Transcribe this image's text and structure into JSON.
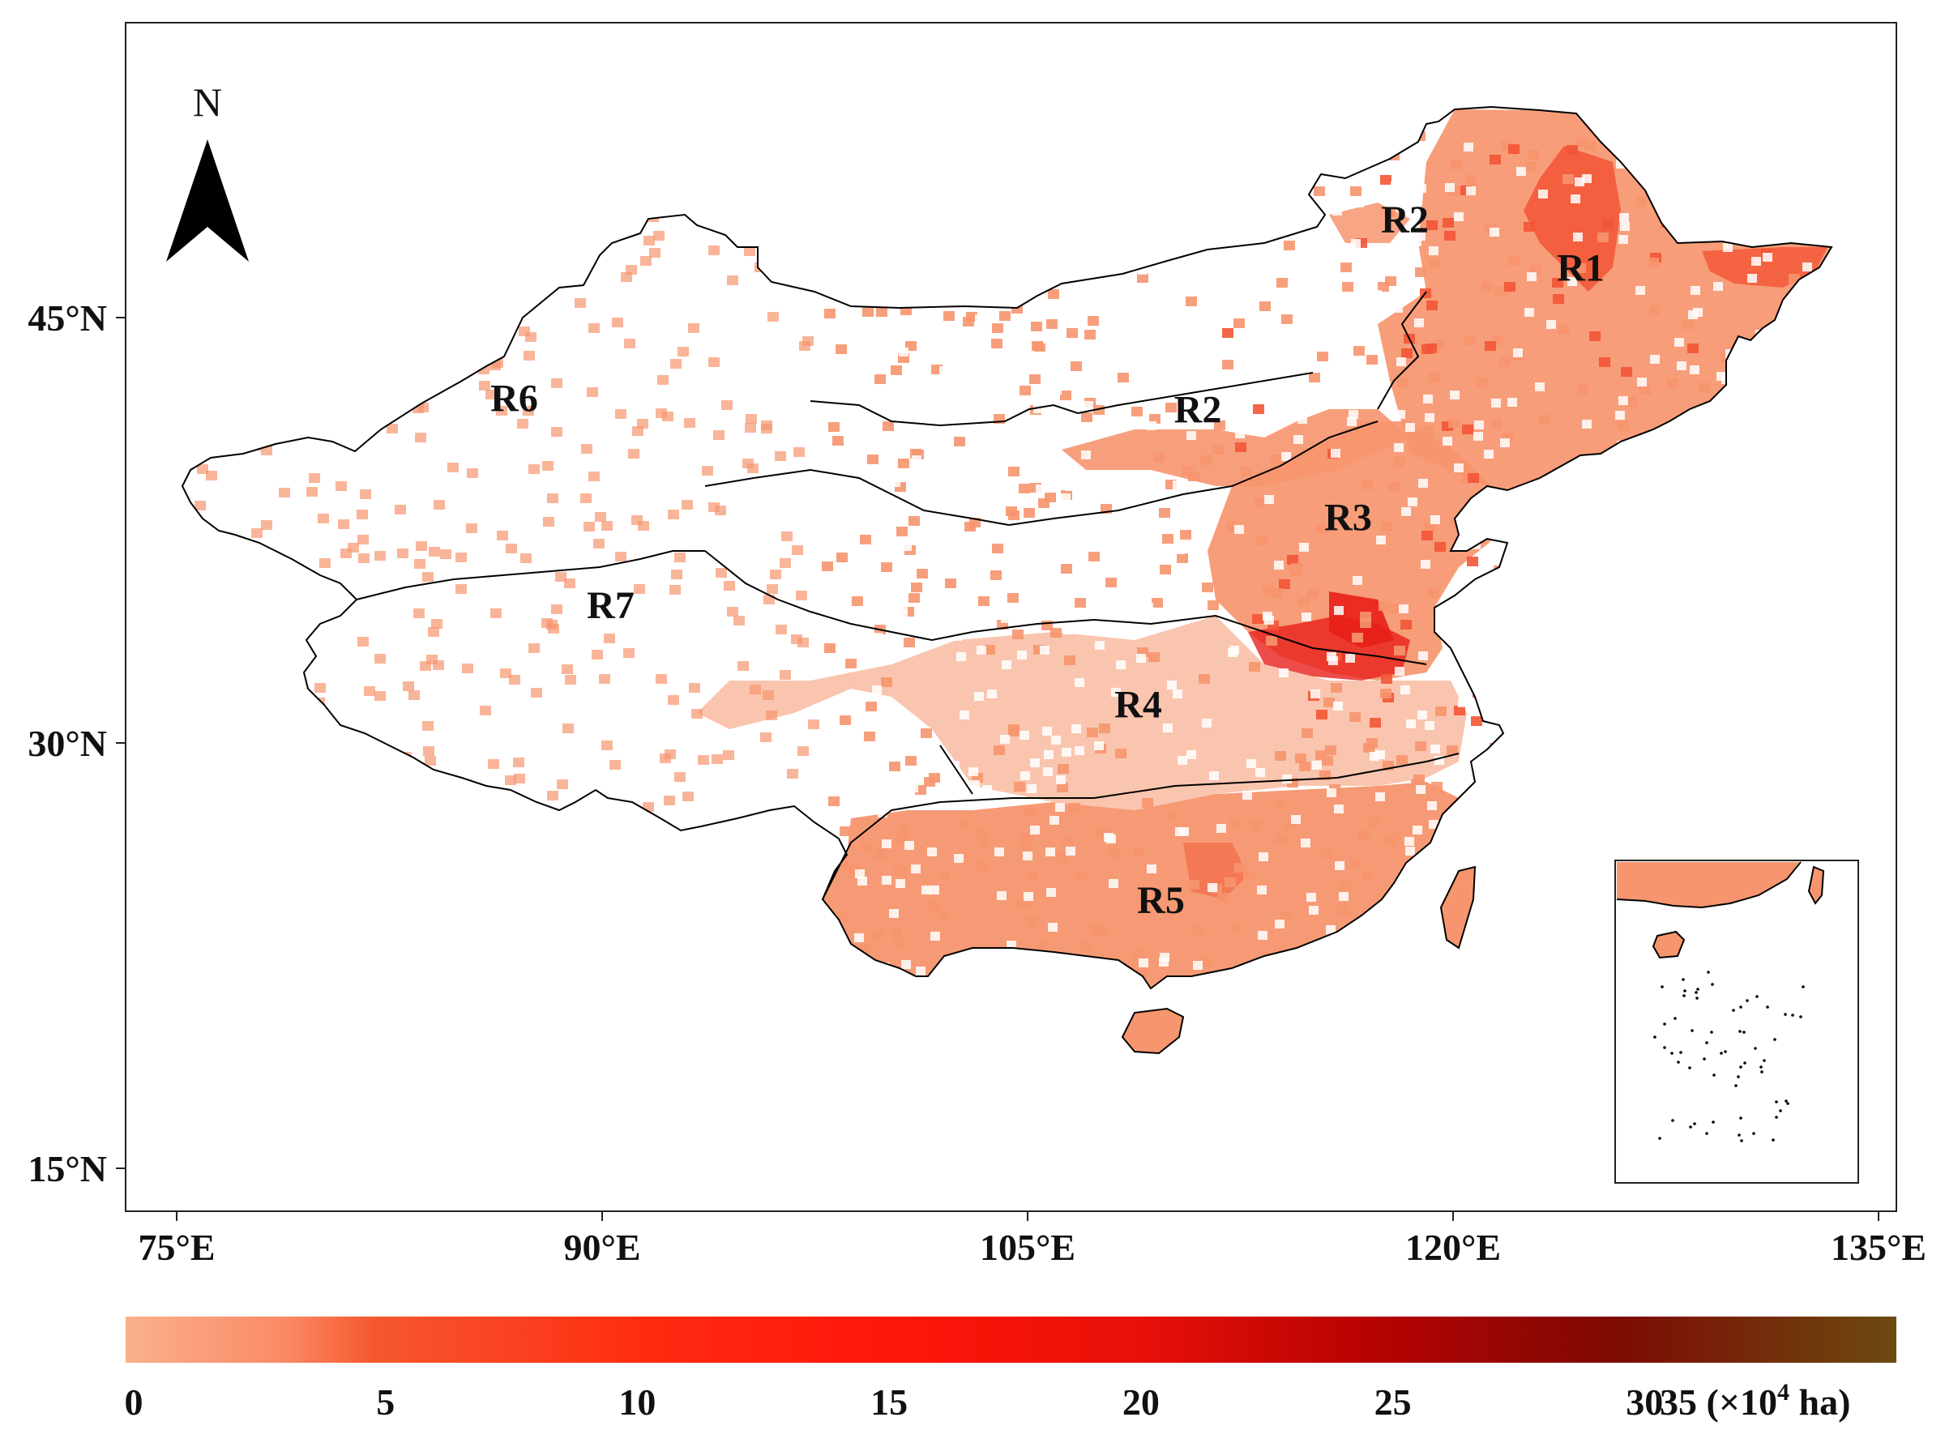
{
  "map": {
    "north_arrow": {
      "label": "N",
      "icon": "north-arrow-icon"
    },
    "latitude_ticks": [
      {
        "label": "45°N",
        "lat": 45
      },
      {
        "label": "30°N",
        "lat": 30
      },
      {
        "label": "15°N",
        "lat": 15
      }
    ],
    "longitude_ticks": [
      {
        "label": "75°E",
        "lon": 75
      },
      {
        "label": "90°E",
        "lon": 90
      },
      {
        "label": "105°E",
        "lon": 105
      },
      {
        "label": "120°E",
        "lon": 120
      },
      {
        "label": "135°E",
        "lon": 135
      }
    ],
    "regions": [
      {
        "label": "R1",
        "lon": 124.5,
        "lat": 46.3
      },
      {
        "label": "R2",
        "lon": 118.3,
        "lat": 48.0
      },
      {
        "label": "R2",
        "lon": 111.0,
        "lat": 41.3
      },
      {
        "label": "R3",
        "lon": 116.3,
        "lat": 37.5
      },
      {
        "label": "R4",
        "lon": 108.9,
        "lat": 30.9
      },
      {
        "label": "R5",
        "lon": 109.7,
        "lat": 24.0
      },
      {
        "label": "R6",
        "lon": 86.9,
        "lat": 41.7
      },
      {
        "label": "R7",
        "lon": 90.3,
        "lat": 34.4
      }
    ],
    "inset": {
      "name": "South China Sea inset"
    }
  },
  "legend": {
    "tick_labels": [
      "0",
      "5",
      "10",
      "15",
      "20",
      "25",
      "30"
    ],
    "last_label": "35 (×10",
    "last_label_sup": "4",
    "last_label_unit": " ha)",
    "color_stops": [
      "#fbb08c",
      "#f8653c",
      "#ff2a10",
      "#ff1a0a",
      "#e01005",
      "#b80000",
      "#8a0000",
      "#6a1a05",
      "#6b4a10"
    ],
    "min": 0,
    "max": 35
  },
  "colors": {
    "low": "#f6956e",
    "mid": "#f25535",
    "high": "#e8201a",
    "very_high": "#7a3a10",
    "boundary": "#000000"
  }
}
